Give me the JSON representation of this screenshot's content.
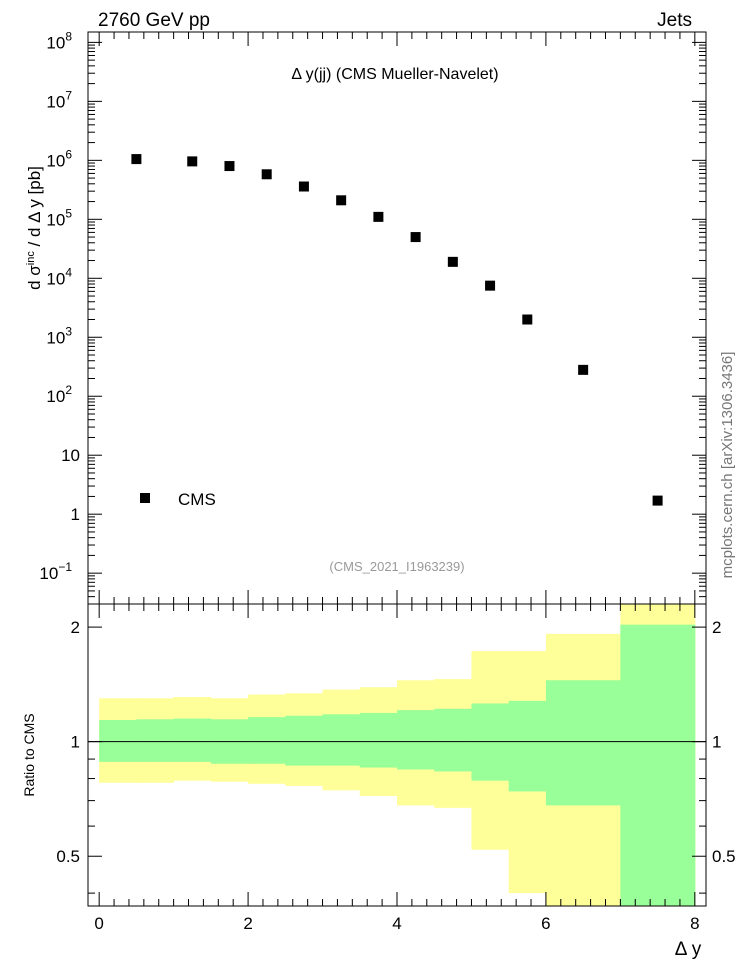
{
  "header": {
    "left": "2760 GeV pp",
    "right": "Jets"
  },
  "side_label": "mcplots.cern.ch [arXiv:1306.3436]",
  "chart_data": [
    {
      "type": "scatter",
      "title": "Δ y(jj) (CMS Mueller-Navelet)",
      "watermark": "(CMS_2021_I1963239)",
      "ylabel": "d σ^inc / d Δ y [pb]",
      "xlabel": "Δ y",
      "y_scale": "log",
      "xlim": [
        -0.15,
        8.15
      ],
      "ylim": [
        0.03,
        150000000.0
      ],
      "ytick_labels": [
        {
          "v": 0.1,
          "base": "10",
          "exp": "−1"
        },
        {
          "v": 1,
          "base": "1",
          "exp": ""
        },
        {
          "v": 10,
          "base": "10",
          "exp": ""
        },
        {
          "v": 100,
          "base": "10",
          "exp": "2"
        },
        {
          "v": 1000,
          "base": "10",
          "exp": "3"
        },
        {
          "v": 10000,
          "base": "10",
          "exp": "4"
        },
        {
          "v": 100000,
          "base": "10",
          "exp": "5"
        },
        {
          "v": 1000000,
          "base": "10",
          "exp": "6"
        },
        {
          "v": 10000000,
          "base": "10",
          "exp": "7"
        },
        {
          "v": 100000000,
          "base": "10",
          "exp": "8"
        }
      ],
      "legend": {
        "label": "CMS",
        "placement": "bottom-left"
      },
      "series": [
        {
          "name": "CMS",
          "x": [
            0.5,
            1.25,
            1.75,
            2.25,
            2.75,
            3.25,
            3.75,
            4.25,
            4.75,
            5.25,
            5.75,
            6.5,
            7.5
          ],
          "values": [
            1050000,
            960000,
            800000,
            580000,
            360000,
            210000,
            110000,
            50000,
            19000,
            7500,
            2000,
            280,
            1.7
          ]
        }
      ]
    },
    {
      "type": "area",
      "ylabel": "Ratio to CMS",
      "xlabel": "Δ y",
      "ylim": [
        0.37,
        2.3
      ],
      "xticks": [
        0,
        2,
        4,
        6,
        8
      ],
      "yticks": [
        0.5,
        1,
        2
      ],
      "reference_line": 1,
      "bin_edges": [
        0,
        0.5,
        1.0,
        1.5,
        2.0,
        2.5,
        3.0,
        3.5,
        4.0,
        4.5,
        5.0,
        5.5,
        6.0,
        7.0,
        8.0
      ],
      "band_inner": {
        "color": "#99ff99",
        "lo": [
          0.885,
          0.885,
          0.885,
          0.875,
          0.875,
          0.865,
          0.865,
          0.855,
          0.845,
          0.835,
          0.79,
          0.74,
          0.68,
          0.37
        ],
        "hi": [
          1.14,
          1.145,
          1.15,
          1.145,
          1.16,
          1.17,
          1.18,
          1.19,
          1.21,
          1.22,
          1.26,
          1.28,
          1.45,
          2.03
        ]
      },
      "band_outer": {
        "color": "#ffff99",
        "lo": [
          0.78,
          0.78,
          0.79,
          0.785,
          0.775,
          0.765,
          0.745,
          0.72,
          0.68,
          0.67,
          0.52,
          0.4,
          0.37,
          0.37
        ],
        "hi": [
          1.3,
          1.3,
          1.31,
          1.3,
          1.33,
          1.34,
          1.37,
          1.39,
          1.45,
          1.46,
          1.73,
          1.73,
          1.92,
          2.3
        ]
      }
    }
  ]
}
